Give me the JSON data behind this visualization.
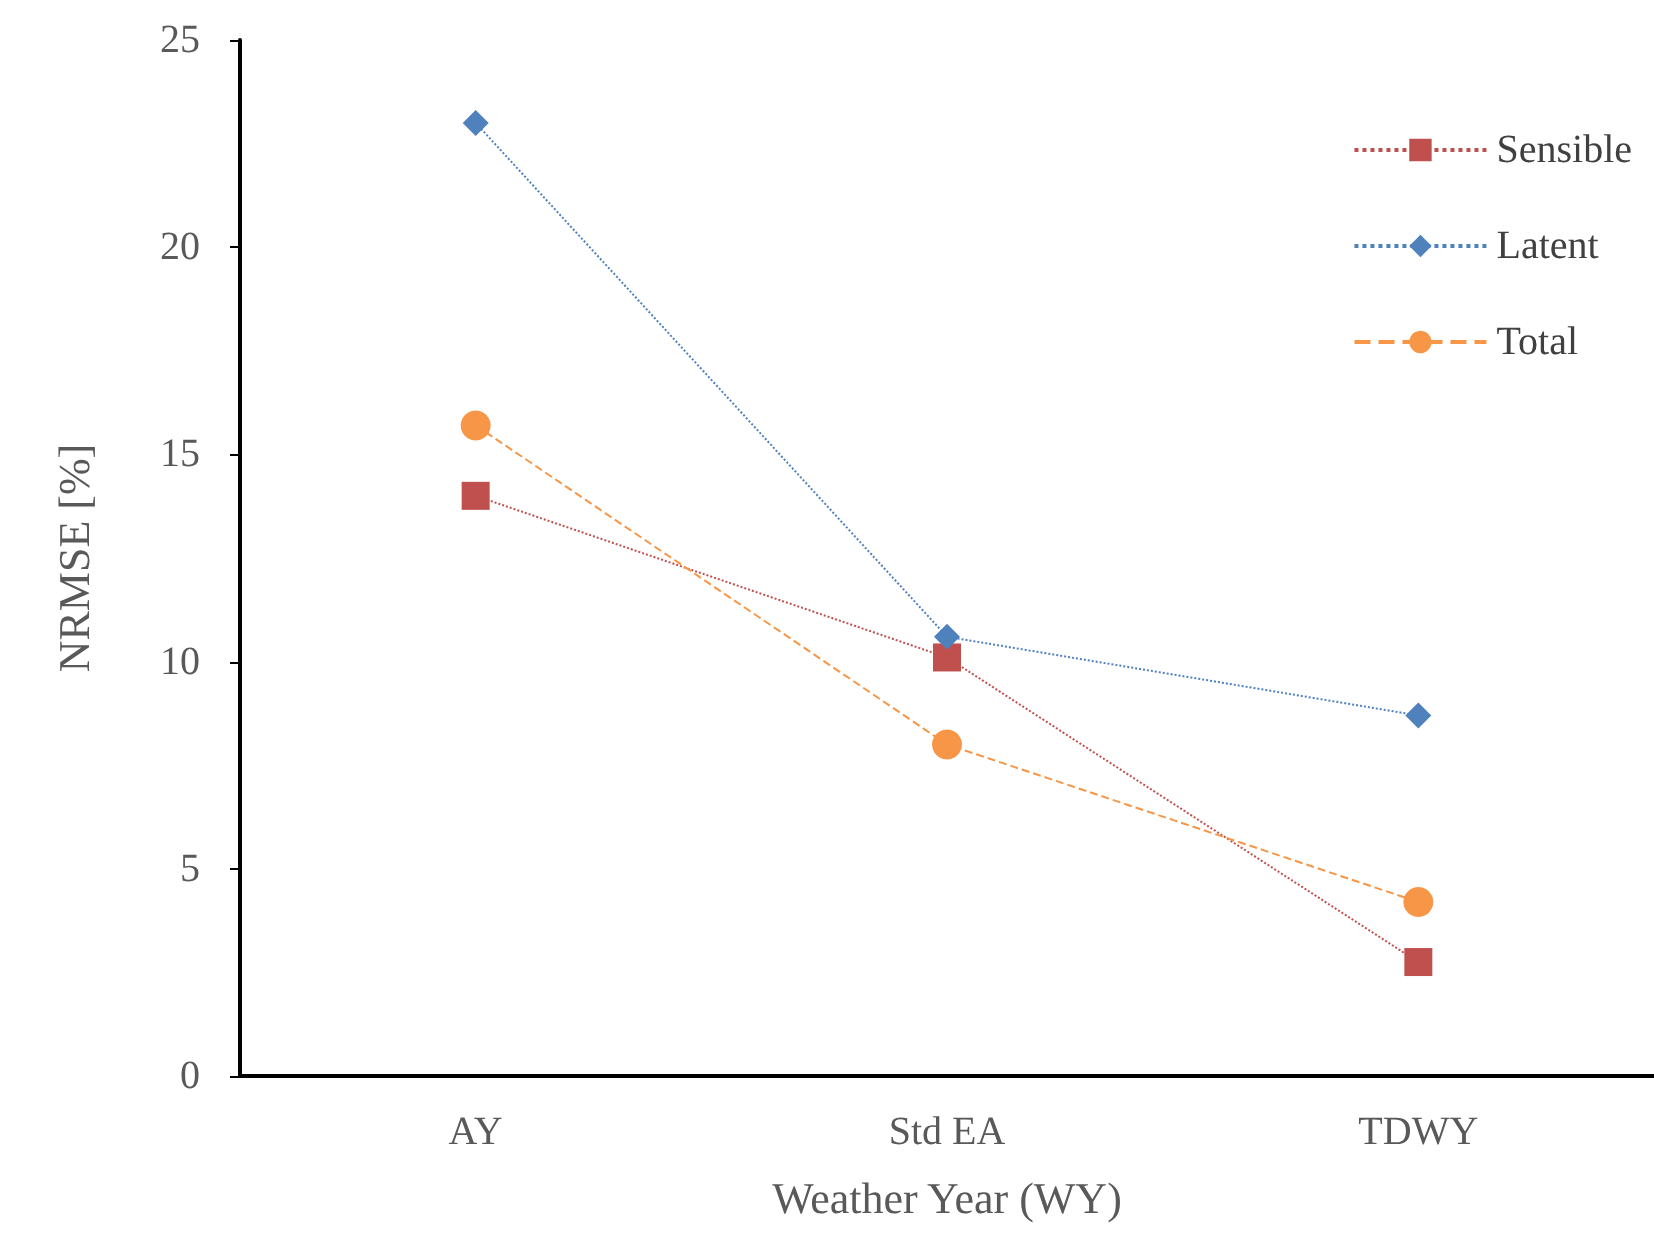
{
  "chart_data": {
    "type": "line",
    "xlabel": "Weather Year (WY)",
    "ylabel": "NRMSE [%]",
    "categories": [
      "AY",
      "Std EA",
      "TDWY"
    ],
    "series": [
      {
        "name": "Sensible",
        "color": "#c0504d",
        "marker": "square",
        "line_style": "dotted",
        "values": [
          14.0,
          10.1,
          2.75
        ]
      },
      {
        "name": "Latent",
        "color": "#4f81bd",
        "marker": "diamond",
        "line_style": "dotted",
        "values": [
          23.0,
          10.6,
          8.7
        ]
      },
      {
        "name": "Total",
        "color": "#f79646",
        "marker": "circle",
        "line_style": "dashed",
        "values": [
          15.7,
          8.0,
          4.2
        ]
      }
    ],
    "ylim": [
      0,
      25
    ],
    "yticks": [
      0,
      5,
      10,
      15,
      20,
      25
    ],
    "grid": false,
    "legend": "top right"
  }
}
